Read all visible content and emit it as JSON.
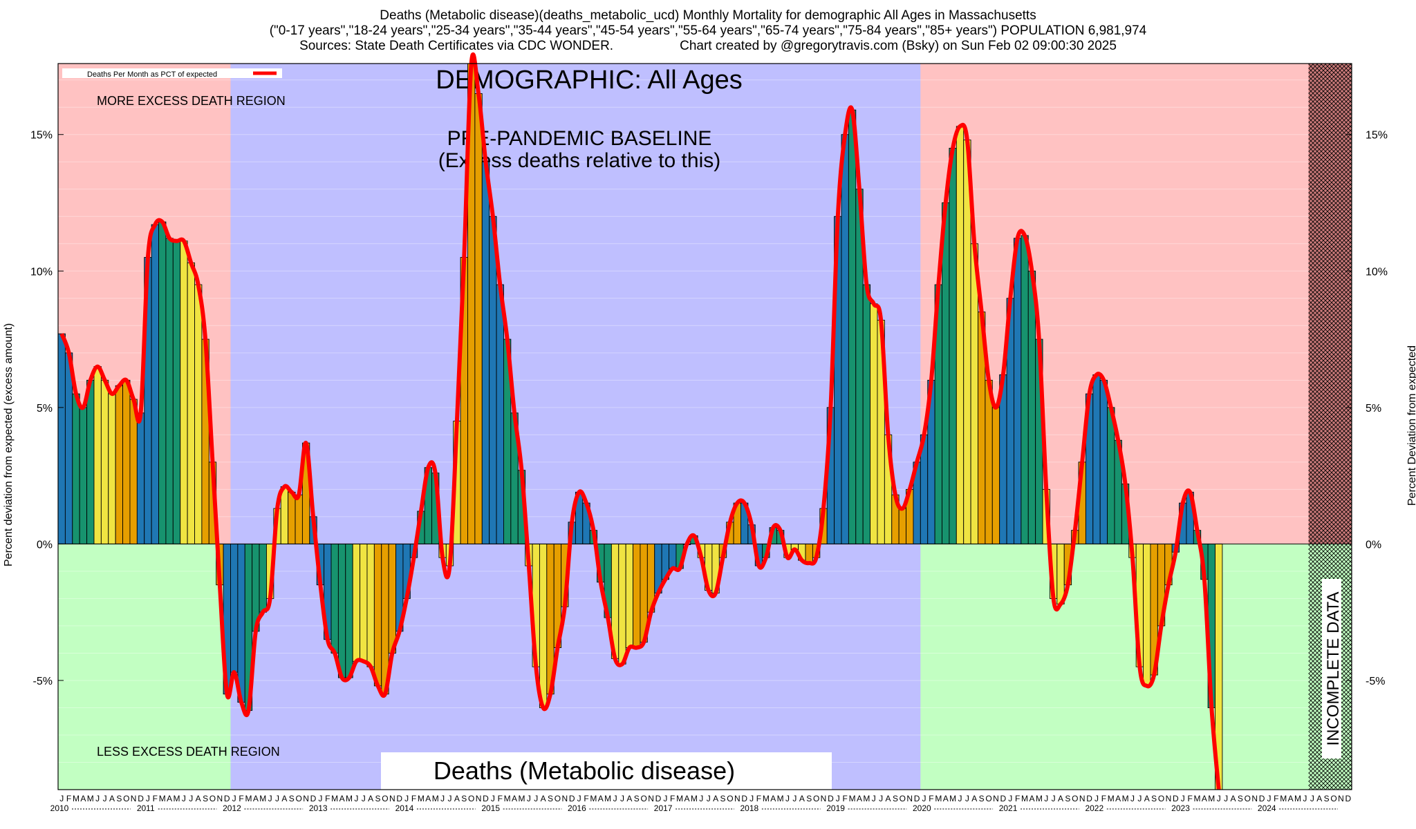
{
  "title": {
    "line1": "Deaths (Metabolic disease)(deaths_metabolic_ucd) Monthly Mortality for demographic All Ages in Massachusetts",
    "line2": "(\"0-17 years\",\"18-24 years\",\"25-34 years\",\"35-44 years\",\"45-54 years\",\"55-64 years\",\"65-74 years\",\"75-84 years\",\"85+ years\") POPULATION 6,981,974",
    "line3_left": "Sources: State Death Certificates via CDC WONDER.",
    "line3_right": "Chart created by @gregorytravis.com (Bsky) on Sun Feb 02 09:00:30 2025"
  },
  "annotations": {
    "demographic": "DEMOGRAPHIC: All Ages",
    "baseline_line1": "PRE-PANDEMIC BASELINE",
    "baseline_line2": "(Excess deaths relative to this)",
    "more_excess": "MORE EXCESS DEATH REGION",
    "less_excess": "LESS EXCESS DEATH REGION",
    "bottom_title": "Deaths (Metabolic disease)",
    "incomplete": "INCOMPLETE DATA"
  },
  "legend": {
    "label": "Deaths Per Month as PCT of expected"
  },
  "colors": {
    "more_region": "#ffc2c2",
    "less_region": "#c2ffc2",
    "baseline_region": "#bfbfff",
    "line": "#ff0000",
    "bar_winter": "#1f77b4",
    "bar_spring": "#17936e",
    "bar_summer": "#f0e442",
    "bar_fall": "#e69f00",
    "incomplete_fill": "#a04040"
  },
  "chart_data": {
    "type": "bar",
    "xlabel": "",
    "ylabel": "Percent deviation from expected (excess amount)",
    "ylabel_right": "Percent Deviation from expected",
    "ylim": [
      -9,
      17.6
    ],
    "yticks": [
      -5,
      0,
      5,
      10,
      15
    ],
    "ytick_labels": [
      "-5%",
      "0%",
      "5%",
      "10%",
      "15%"
    ],
    "years": [
      "2010",
      "2011",
      "2012",
      "2013",
      "2014",
      "2015",
      "2016",
      "2017",
      "2018",
      "2019",
      "2020",
      "2021",
      "2022",
      "2023",
      "2024"
    ],
    "month_letters": [
      "J",
      "F",
      "M",
      "A",
      "M",
      "J",
      "J",
      "A",
      "S",
      "O",
      "N",
      "D"
    ],
    "baseline_period": [
      "2012-01",
      "2019-12"
    ],
    "incomplete_period": [
      "2024-07",
      "2024-12"
    ],
    "series": [
      {
        "name": "Deaths Per Month as PCT of expected",
        "start": "2010-01",
        "values": [
          7.7,
          7.0,
          5.5,
          5.0,
          6.0,
          6.5,
          6.0,
          5.5,
          5.8,
          6.0,
          5.3,
          4.8,
          10.5,
          11.7,
          11.8,
          11.2,
          11.1,
          11.1,
          10.3,
          9.5,
          7.5,
          3.0,
          -1.5,
          -5.5,
          -4.7,
          -5.8,
          -6.1,
          -3.2,
          -2.5,
          -2.0,
          1.3,
          2.1,
          1.9,
          1.8,
          3.7,
          1.0,
          -1.5,
          -3.5,
          -4.0,
          -4.9,
          -4.9,
          -4.3,
          -4.3,
          -4.5,
          -5.2,
          -5.5,
          -4.0,
          -3.2,
          -2.0,
          -0.5,
          1.2,
          2.8,
          2.6,
          -0.5,
          -0.8,
          4.5,
          10.5,
          17.6,
          16.5,
          14.0,
          12.0,
          9.5,
          7.5,
          4.8,
          2.7,
          -0.8,
          -4.5,
          -6.0,
          -5.5,
          -3.8,
          -2.3,
          0.8,
          1.9,
          1.5,
          0.5,
          -1.4,
          -2.7,
          -4.2,
          -4.4,
          -3.8,
          -3.8,
          -3.6,
          -2.5,
          -1.8,
          -1.3,
          -0.9,
          -0.9,
          0.0,
          0.3,
          -0.5,
          -1.7,
          -1.8,
          -0.5,
          0.8,
          1.5,
          1.5,
          0.7,
          -0.8,
          -0.5,
          0.6,
          0.5,
          -0.5,
          -0.2,
          -0.6,
          -0.7,
          -0.5,
          1.3,
          5.0,
          12.0,
          15.0,
          15.9,
          13.0,
          9.5,
          8.8,
          8.2,
          4.0,
          1.8,
          1.3,
          2.0,
          3.0,
          4.0,
          6.0,
          9.5,
          12.5,
          14.5,
          15.3,
          14.8,
          11.0,
          8.5,
          6.0,
          5.0,
          6.2,
          9.0,
          11.2,
          11.3,
          10.0,
          7.5,
          2.0,
          -2.0,
          -2.2,
          -1.5,
          0.5,
          3.0,
          5.5,
          6.2,
          6.0,
          5.0,
          3.8,
          2.2,
          -0.5,
          -4.5,
          -5.2,
          -4.8,
          -3.0,
          -1.5,
          -0.3,
          1.5,
          1.9,
          0.5,
          -1.3,
          -6.0,
          -9.0
        ]
      }
    ],
    "grid": false,
    "legend_position": "top-left"
  }
}
